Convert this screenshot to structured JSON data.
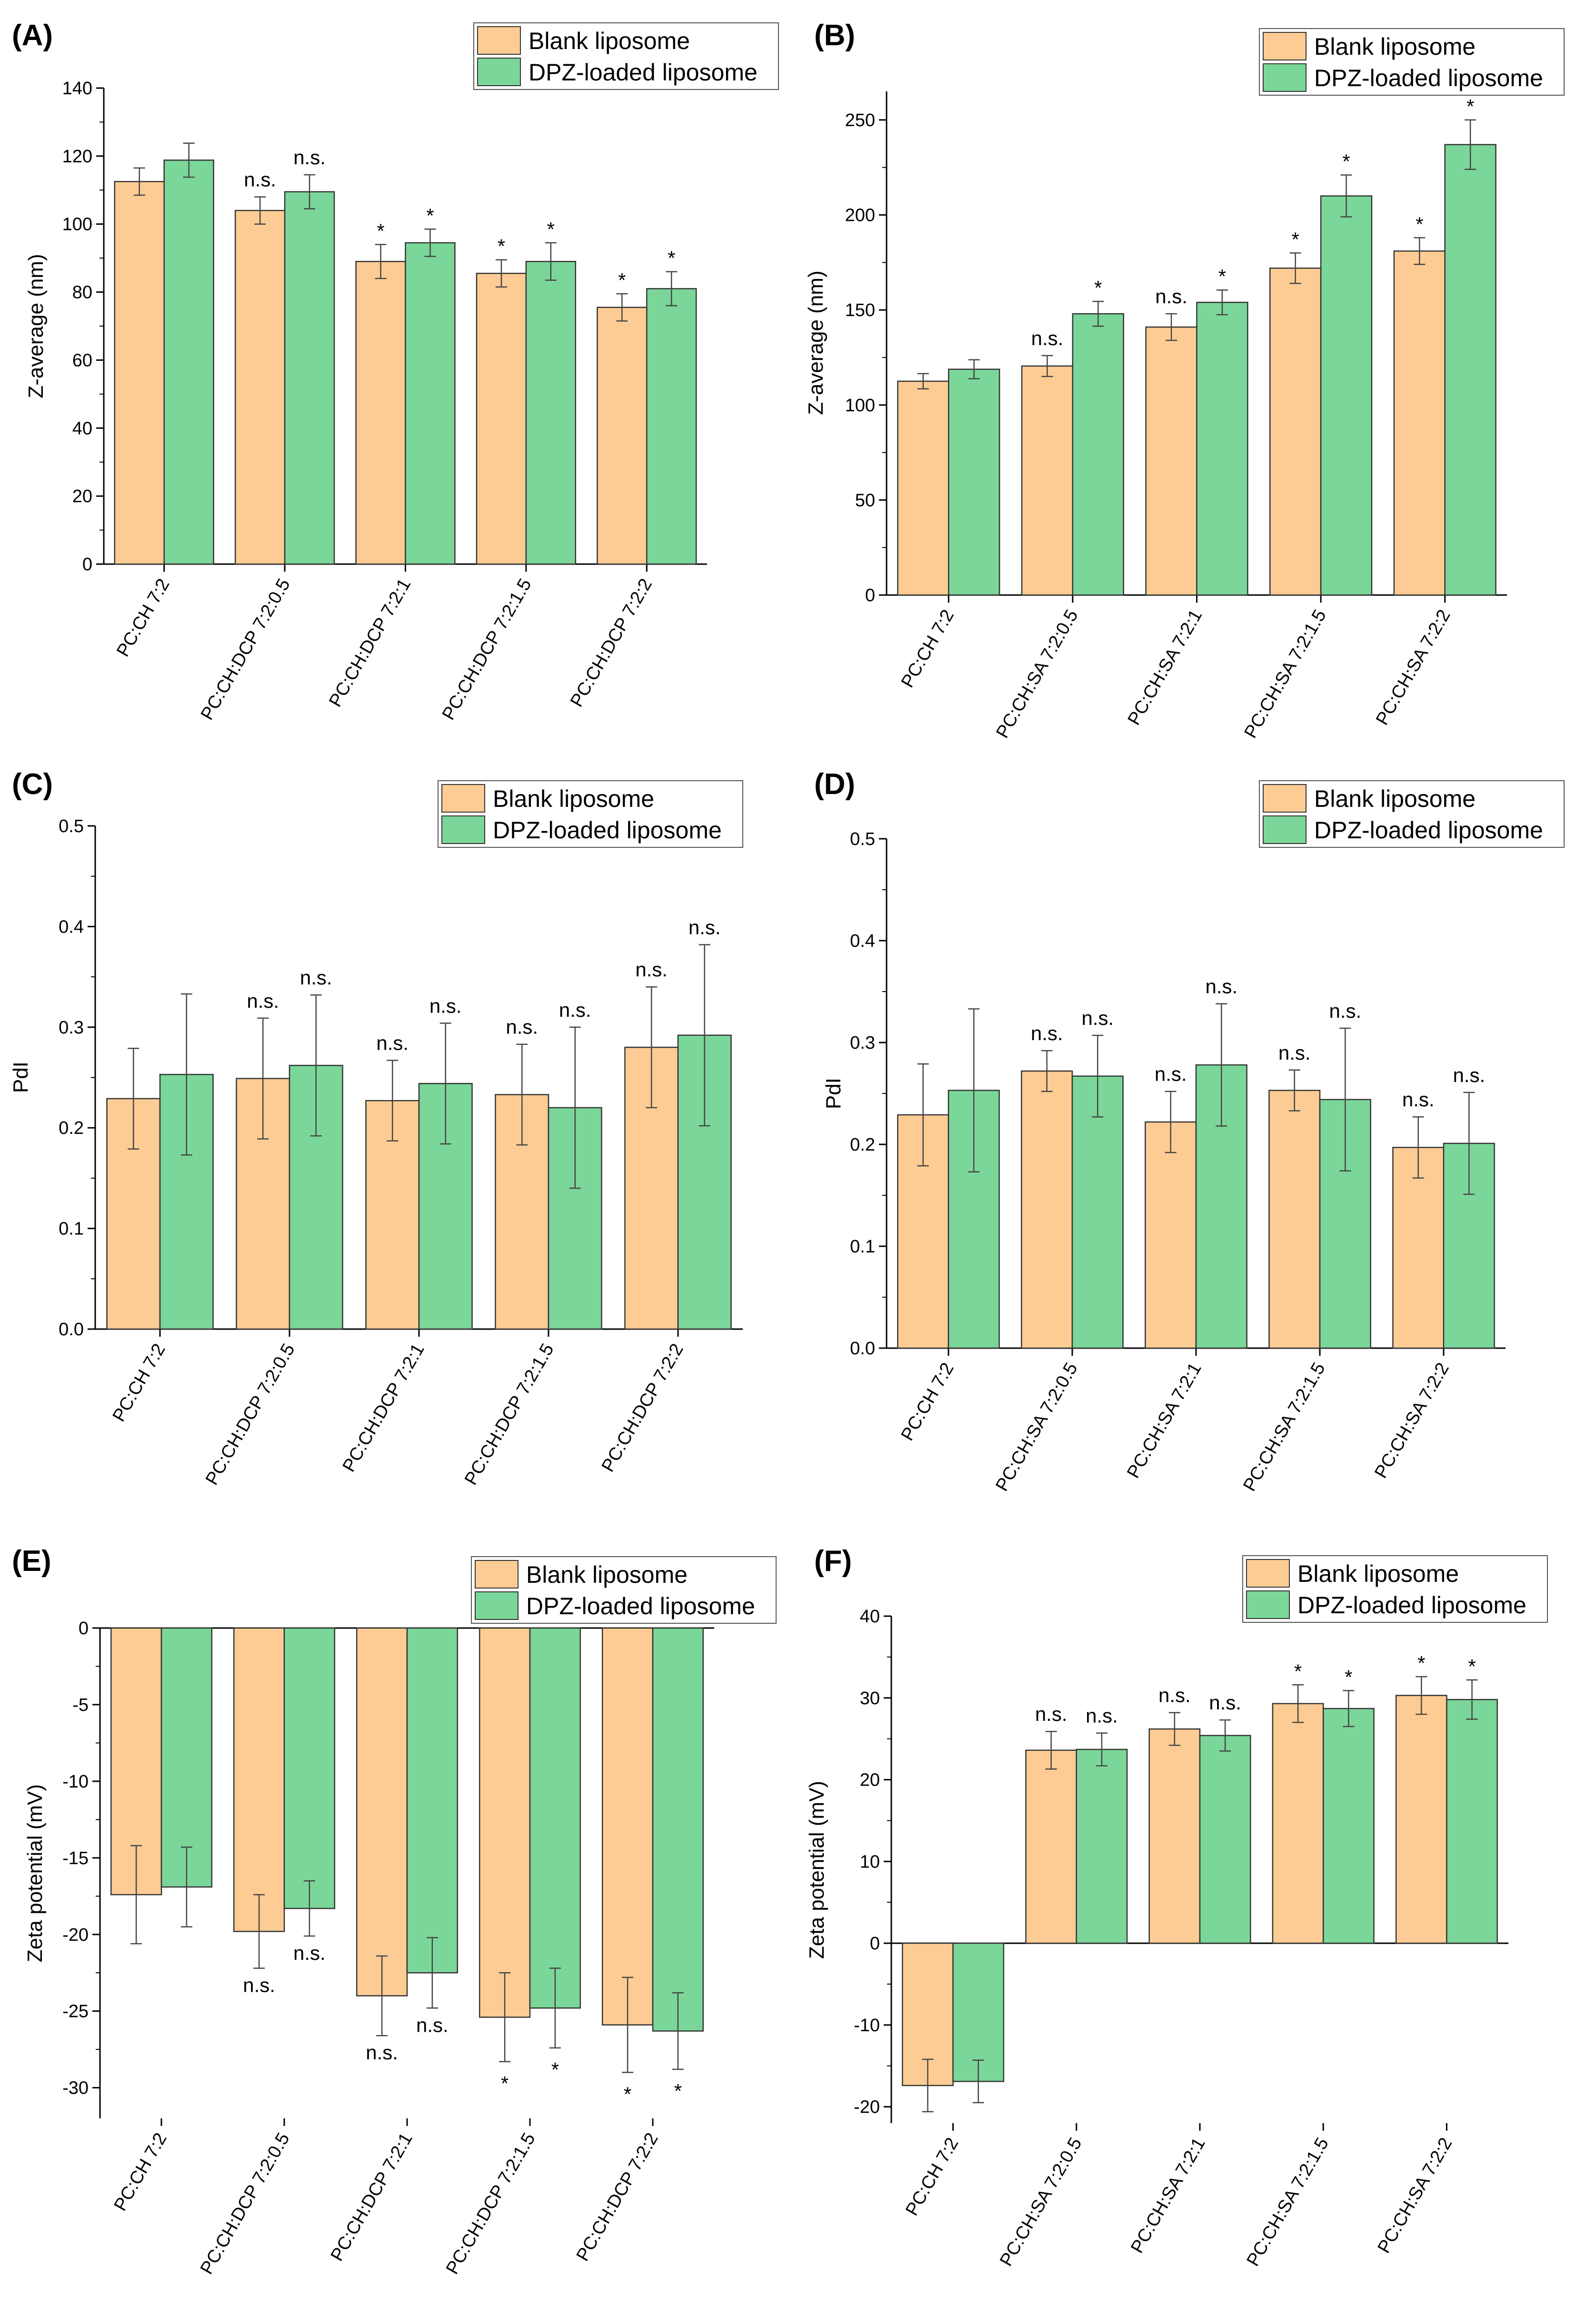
{
  "colors": {
    "blank": "#FDCC94",
    "loaded": "#7BD699",
    "axis": "#000000",
    "error": "#444444"
  },
  "legend": {
    "series_1": "Blank liposome",
    "series_2": "DPZ-loaded liposome"
  },
  "chart_data": [
    {
      "panel": "(A)",
      "type": "bar",
      "ylabel": "Z-average (nm)",
      "ylim": [
        0,
        140
      ],
      "yticks": [
        0,
        20,
        40,
        60,
        80,
        100,
        120,
        140
      ],
      "categories": [
        "PC:CH 7:2",
        "PC:CH:DCP 7:2:0.5",
        "PC:CH:DCP 7:2:1",
        "PC:CH:DCP 7:2:1.5",
        "PC:CH:DCP 7:2:2"
      ],
      "series": [
        {
          "name": "Blank liposome",
          "values": [
            112.5,
            104,
            89,
            85.5,
            75.5
          ],
          "errors": [
            4,
            4,
            5,
            4,
            4
          ],
          "labels": [
            "",
            "n.s.",
            "*",
            "*",
            "*"
          ]
        },
        {
          "name": "DPZ-loaded liposome",
          "values": [
            118.8,
            109.5,
            94.5,
            89,
            81
          ],
          "errors": [
            5,
            5,
            4,
            5.5,
            5
          ],
          "labels": [
            "",
            "n.s.",
            "*",
            "*",
            "*"
          ]
        }
      ]
    },
    {
      "panel": "(B)",
      "type": "bar",
      "ylabel": "Z-average (nm)",
      "ylim": [
        0,
        265
      ],
      "yticks": [
        0,
        50,
        100,
        150,
        200,
        250
      ],
      "categories": [
        "PC:CH 7:2",
        "PC:CH:SA 7:2:0.5",
        "PC:CH:SA 7:2:1",
        "PC:CH:SA 7:2:1.5",
        "PC:CH:SA 7:2:2"
      ],
      "series": [
        {
          "name": "Blank liposome",
          "values": [
            112.5,
            120.5,
            141,
            172,
            181
          ],
          "errors": [
            4,
            5.5,
            7,
            8,
            7
          ],
          "labels": [
            "",
            "n.s.",
            "n.s.",
            "*",
            "*"
          ]
        },
        {
          "name": "DPZ-loaded liposome",
          "values": [
            118.8,
            148,
            154,
            210,
            237
          ],
          "errors": [
            5,
            6.5,
            6.5,
            11,
            13
          ],
          "labels": [
            "",
            "*",
            "*",
            "*",
            "*"
          ]
        }
      ]
    },
    {
      "panel": "(C)",
      "type": "bar",
      "ylabel": "PdI",
      "ylim": [
        0,
        0.5
      ],
      "yticks": [
        0.0,
        0.1,
        0.2,
        0.3,
        0.4,
        0.5
      ],
      "tick_decimals": 1,
      "categories": [
        "PC:CH 7:2",
        "PC:CH:DCP 7:2:0.5",
        "PC:CH:DCP 7:2:1",
        "PC:CH:DCP 7:2:1.5",
        "PC:CH:DCP 7:2:2"
      ],
      "series": [
        {
          "name": "Blank liposome",
          "values": [
            0.229,
            0.249,
            0.227,
            0.233,
            0.28
          ],
          "errors": [
            0.05,
            0.06,
            0.04,
            0.05,
            0.06
          ],
          "labels": [
            "",
            "n.s.",
            "n.s.",
            "n.s.",
            "n.s."
          ]
        },
        {
          "name": "DPZ-loaded liposome",
          "values": [
            0.253,
            0.262,
            0.244,
            0.22,
            0.292
          ],
          "errors": [
            0.08,
            0.07,
            0.06,
            0.08,
            0.09
          ],
          "labels": [
            "",
            "n.s.",
            "n.s.",
            "n.s.",
            "n.s."
          ]
        }
      ]
    },
    {
      "panel": "(D)",
      "type": "bar",
      "ylabel": "PdI",
      "ylim": [
        0,
        0.5
      ],
      "yticks": [
        0.0,
        0.1,
        0.2,
        0.3,
        0.4,
        0.5
      ],
      "tick_decimals": 1,
      "categories": [
        "PC:CH 7:2",
        "PC:CH:SA 7:2:0.5",
        "PC:CH:SA 7:2:1",
        "PC:CH:SA 7:2:1.5",
        "PC:CH:SA 7:2:2"
      ],
      "series": [
        {
          "name": "Blank liposome",
          "values": [
            0.229,
            0.272,
            0.222,
            0.253,
            0.197
          ],
          "errors": [
            0.05,
            0.02,
            0.03,
            0.02,
            0.03
          ],
          "labels": [
            "",
            "n.s.",
            "n.s.",
            "n.s.",
            "n.s."
          ]
        },
        {
          "name": "DPZ-loaded liposome",
          "values": [
            0.253,
            0.267,
            0.278,
            0.244,
            0.201
          ],
          "errors": [
            0.08,
            0.04,
            0.06,
            0.07,
            0.05
          ],
          "labels": [
            "",
            "n.s.",
            "n.s.",
            "n.s.",
            "n.s."
          ]
        }
      ]
    },
    {
      "panel": "(E)",
      "type": "bar",
      "ylabel": "Zeta potential (mV)",
      "ylim": [
        -32,
        0
      ],
      "yticks": [
        -30,
        -25,
        -20,
        -15,
        -10,
        -5,
        0
      ],
      "categories": [
        "PC:CH 7:2",
        "PC:CH:DCP 7:2:0.5",
        "PC:CH:DCP 7:2:1",
        "PC:CH:DCP 7:2:1.5",
        "PC:CH:DCP 7:2:2"
      ],
      "series": [
        {
          "name": "Blank liposome",
          "values": [
            -17.4,
            -19.8,
            -24,
            -25.4,
            -25.9
          ],
          "errors": [
            3.2,
            2.4,
            2.6,
            2.9,
            3.1
          ],
          "labels": [
            "",
            "n.s.",
            "n.s.",
            "*",
            "*"
          ]
        },
        {
          "name": "DPZ-loaded liposome",
          "values": [
            -16.9,
            -18.3,
            -22.5,
            -24.8,
            -26.3
          ],
          "errors": [
            2.6,
            1.8,
            2.3,
            2.6,
            2.5
          ],
          "labels": [
            "",
            "n.s.",
            "n.s.",
            "*",
            "*"
          ]
        }
      ]
    },
    {
      "panel": "(F)",
      "type": "bar",
      "ylabel": "Zeta potential (mV)",
      "ylim": [
        -22,
        40
      ],
      "yticks": [
        -20,
        -10,
        0,
        10,
        20,
        30,
        40
      ],
      "categories": [
        "PC:CH 7:2",
        "PC:CH:SA 7:2:0.5",
        "PC:CH:SA 7:2:1",
        "PC:CH:SA 7:2:1.5",
        "PC:CH:SA 7:2:2"
      ],
      "series": [
        {
          "name": "Blank liposome",
          "values": [
            -17.4,
            23.6,
            26.2,
            29.3,
            30.3
          ],
          "errors": [
            3.2,
            2.3,
            2.0,
            2.3,
            2.3
          ],
          "labels": [
            "",
            "n.s.",
            "n.s.",
            "*",
            "*"
          ]
        },
        {
          "name": "DPZ-loaded liposome",
          "values": [
            -16.9,
            23.7,
            25.4,
            28.7,
            29.8
          ],
          "errors": [
            2.6,
            2.0,
            1.9,
            2.2,
            2.4
          ],
          "labels": [
            "",
            "n.s.",
            "n.s.",
            "*",
            "*"
          ]
        }
      ]
    }
  ]
}
